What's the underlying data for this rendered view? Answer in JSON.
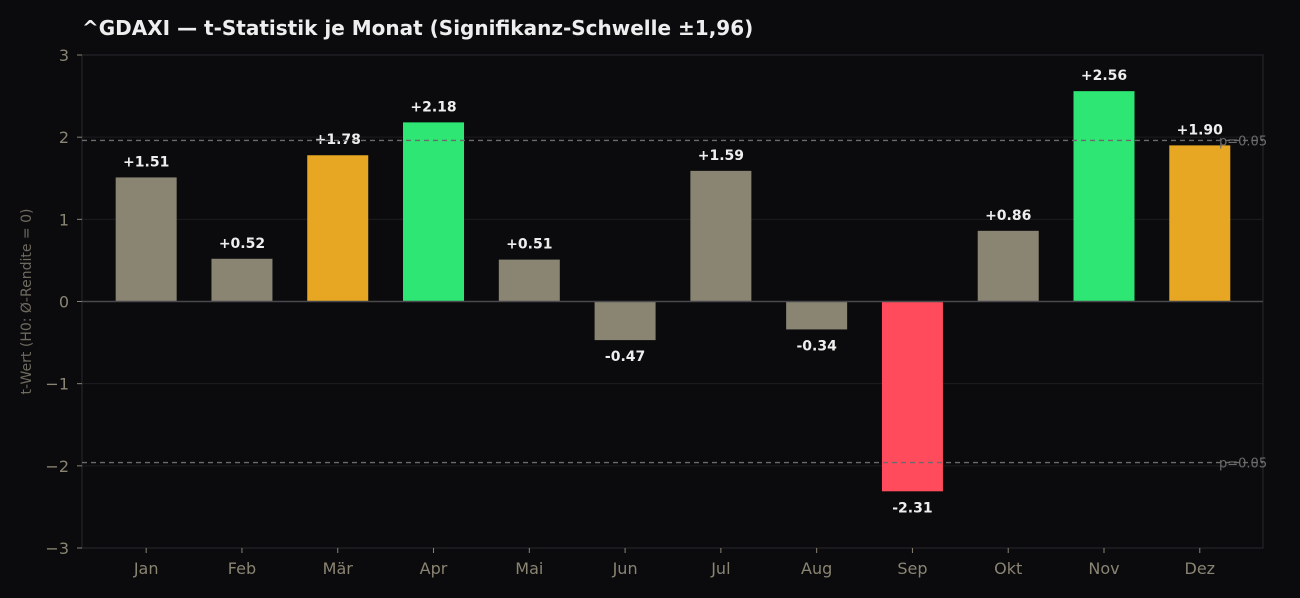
{
  "chart_data": {
    "type": "bar",
    "title": "^GDAXI — t-Statistik je Monat (Signifikanz-Schwelle ±1,96)",
    "xlabel": "",
    "ylabel": "t-Wert (H0: Ø-Rendite = 0)",
    "categories": [
      "Jan",
      "Feb",
      "Mär",
      "Apr",
      "Mai",
      "Jun",
      "Jul",
      "Aug",
      "Sep",
      "Okt",
      "Nov",
      "Dez"
    ],
    "values": [
      1.51,
      0.52,
      1.78,
      2.18,
      0.51,
      -0.47,
      1.59,
      -0.34,
      -2.31,
      0.86,
      2.56,
      1.9
    ],
    "data_labels": [
      "+1.51",
      "+0.52",
      "+1.78",
      "+2.18",
      "+0.51",
      "-0.47",
      "+1.59",
      "-0.34",
      "-2.31",
      "+0.86",
      "+2.56",
      "+1.90"
    ],
    "bar_colors": [
      "#8a8473",
      "#8a8473",
      "#e8a722",
      "#2ee673",
      "#8a8473",
      "#8a8473",
      "#8a8473",
      "#8a8473",
      "#ff4b5c",
      "#8a8473",
      "#2ee673",
      "#e8a722"
    ],
    "ylim": [
      -3,
      3
    ],
    "yticks": [
      3,
      2,
      1,
      0,
      -1,
      -2,
      -3
    ],
    "ytick_labels": [
      "3",
      "2",
      "1",
      "0",
      "−1",
      "−2",
      "−3"
    ],
    "reference_lines": [
      {
        "value": 1.96,
        "label": "p=0.05"
      },
      {
        "value": -1.96,
        "label": "p=0.05"
      }
    ],
    "grid": true,
    "legend": "none"
  },
  "colors": {
    "background": "#0b0b0d",
    "frame": "#2a2a2e",
    "grid": "#1d1d21",
    "zero_line": "#4a4a4e",
    "threshold": "#6b6b6b",
    "tick_text": "#8a8473",
    "label_text": "#eeeeee",
    "neutral": "#8a8473",
    "near_significant": "#e8a722",
    "significant_positive": "#2ee673",
    "significant_negative": "#ff4b5c"
  }
}
